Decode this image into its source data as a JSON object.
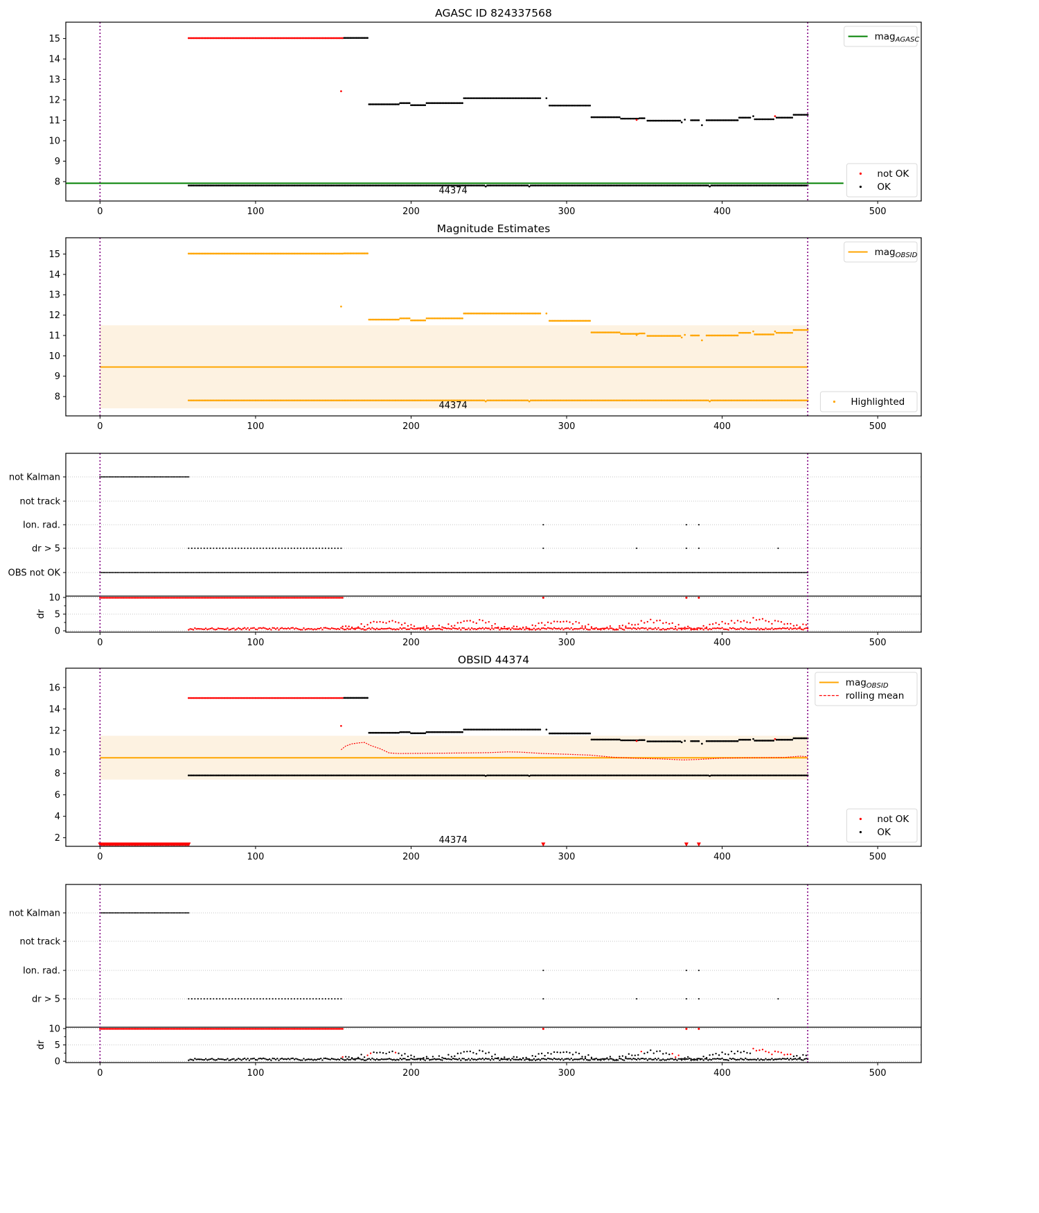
{
  "figure": {
    "vline_color": "#800080",
    "ok_color": "#000000",
    "not_ok_color": "#ff0000",
    "agasc_color": "#008000",
    "obsid_color": "#ffa500",
    "band_color": "#fdf2e1",
    "grid_color": "#b0b0b0"
  },
  "chart_data": [
    {
      "id": "agasc",
      "type": "scatter",
      "title": "AGASC ID 824337568",
      "xlim": [
        -22,
        528
      ],
      "ylim": [
        7.05,
        15.8
      ],
      "xticks": [
        0,
        100,
        200,
        300,
        400,
        500
      ],
      "yticks": [
        8,
        9,
        10,
        11,
        12,
        13,
        14,
        15
      ],
      "vlines": [
        0,
        455
      ],
      "annotation": {
        "text": "44374",
        "x": 227,
        "y": 7.6
      },
      "hline": {
        "name": "mag_AGASC",
        "y": 7.92,
        "x": [
          -22,
          478
        ]
      },
      "legends": [
        {
          "position": "top-right",
          "entries": [
            {
              "label": "mag",
              "sub": "AGASC",
              "kind": "line",
              "color": "#008000"
            }
          ]
        },
        {
          "position": "bottom-right",
          "entries": [
            {
              "label": "not OK",
              "kind": "dot",
              "color": "#ff0000"
            },
            {
              "label": "OK",
              "kind": "dot",
              "color": "#000000"
            }
          ]
        }
      ],
      "series": "mag_points"
    },
    {
      "id": "estimates",
      "type": "scatter",
      "title": "Magnitude Estimates",
      "xlim": [
        -22,
        528
      ],
      "ylim": [
        7.05,
        15.8
      ],
      "xticks": [
        0,
        100,
        200,
        300,
        400,
        500
      ],
      "yticks": [
        8,
        9,
        10,
        11,
        12,
        13,
        14,
        15
      ],
      "vlines": [
        0,
        455
      ],
      "annotation": {
        "text": "44374",
        "x": 227,
        "y": 7.6
      },
      "band": {
        "x": [
          0,
          455
        ],
        "y": [
          7.42,
          11.5
        ]
      },
      "hline": {
        "name": "mag_OBSID",
        "y": 9.45,
        "x": [
          0,
          455
        ]
      },
      "legends": [
        {
          "position": "top-right",
          "entries": [
            {
              "label": "mag",
              "sub": "OBSID",
              "kind": "line",
              "color": "#ffa500"
            }
          ]
        },
        {
          "position": "bottom-right",
          "entries": [
            {
              "label": "Highlighted",
              "kind": "dot",
              "color": "#ffa500"
            }
          ]
        }
      ],
      "series": "mag_points_highlighted"
    },
    {
      "id": "flags1",
      "type": "scatter",
      "title": "",
      "categories": [
        "OBS not OK",
        "dr > 5",
        "Ion. rad.",
        "not track",
        "not Kalman"
      ],
      "xlim": [
        -22,
        528
      ],
      "xticks": [
        0,
        100,
        200,
        300,
        400,
        500
      ],
      "vlines": [
        0,
        455
      ],
      "dr_panel": {
        "ylabel": "dr",
        "yticks": [
          0,
          5,
          10
        ],
        "ylim": [
          -0.4,
          10.4
        ],
        "color_mode": "all_red"
      }
    },
    {
      "id": "obsid",
      "type": "scatter",
      "title": "OBSID 44374",
      "xlim": [
        -22,
        528
      ],
      "ylim": [
        1.2,
        17.8
      ],
      "xticks": [
        0,
        100,
        200,
        300,
        400,
        500
      ],
      "yticks": [
        2,
        4,
        6,
        8,
        10,
        12,
        14,
        16
      ],
      "vlines": [
        0,
        455
      ],
      "annotation": {
        "text": "44374",
        "x": 227,
        "y": 1.85
      },
      "band": {
        "x": [
          0,
          455
        ],
        "y": [
          7.42,
          11.5
        ]
      },
      "hline": {
        "name": "mag_OBSID",
        "y": 9.45,
        "x": [
          0,
          455
        ]
      },
      "legends": [
        {
          "position": "top-right",
          "entries": [
            {
              "label": "mag",
              "sub": "OBSID",
              "kind": "line",
              "color": "#ffa500"
            },
            {
              "label": "rolling mean",
              "kind": "dash",
              "color": "#ff0000"
            }
          ]
        },
        {
          "position": "bottom-right",
          "entries": [
            {
              "label": "not OK",
              "kind": "dot",
              "color": "#ff0000"
            },
            {
              "label": "OK",
              "kind": "dot",
              "color": "#000000"
            }
          ]
        }
      ],
      "series": "mag_points_with_rolling_mean",
      "low_markers": {
        "y": 1.3,
        "x_range": [
          0,
          57
        ],
        "x_single": [
          285,
          377,
          385
        ]
      }
    },
    {
      "id": "flags2",
      "type": "scatter",
      "title": "",
      "categories": [
        "dr > 5",
        "Ion. rad.",
        "not track",
        "not Kalman"
      ],
      "xlim": [
        -22,
        528
      ],
      "xticks": [
        0,
        100,
        200,
        300,
        400,
        500
      ],
      "vlines": [
        0,
        455
      ],
      "dr_panel": {
        "ylabel": "dr",
        "yticks": [
          0,
          5,
          10
        ],
        "ylim": [
          -0.4,
          10.4
        ],
        "color_mode": "flagged_red"
      }
    }
  ],
  "observations": {
    "n_samples": 456,
    "flag_not_kalman_range": [
      0,
      57
    ],
    "flag_dr_gt5_range": [
      57,
      156
    ],
    "flag_dr_gt5_single": [
      285,
      345,
      377,
      385,
      436
    ],
    "flag_ion_rad": [
      285,
      377,
      385
    ],
    "flag_obs_not_ok_range": [
      0,
      455
    ],
    "mag_segments": [
      {
        "x": [
          57,
          156
        ],
        "y": 15.02,
        "ok": false
      },
      {
        "x": [
          157,
          172
        ],
        "y": 15.03,
        "ok": true
      },
      {
        "x": [
          155,
          155
        ],
        "y": 12.42,
        "ok": false
      },
      {
        "x": [
          173,
          192
        ],
        "y": 11.78,
        "ok": true
      },
      {
        "x": [
          193,
          199
        ],
        "y": 11.84,
        "ok": true
      },
      {
        "x": [
          200,
          209
        ],
        "y": 11.74,
        "ok": true
      },
      {
        "x": [
          210,
          233
        ],
        "y": 11.84,
        "ok": true
      },
      {
        "x": [
          234,
          283
        ],
        "y": 12.08,
        "ok": true
      },
      {
        "x": [
          287,
          287
        ],
        "y": 12.08,
        "ok": true
      },
      {
        "x": [
          289,
          315
        ],
        "y": 11.72,
        "ok": true
      },
      {
        "x": [
          316,
          334
        ],
        "y": 11.15,
        "ok": true
      },
      {
        "x": [
          335,
          346
        ],
        "y": 11.08,
        "ok": true
      },
      {
        "x": [
          345,
          345
        ],
        "y": 11.02,
        "ok": false
      },
      {
        "x": [
          347,
          350
        ],
        "y": 11.1,
        "ok": true
      },
      {
        "x": [
          352,
          373
        ],
        "y": 10.98,
        "ok": true
      },
      {
        "x": [
          374,
          374
        ],
        "y": 10.9,
        "ok": true
      },
      {
        "x": [
          376,
          376
        ],
        "y": 11.03,
        "ok": true
      },
      {
        "x": [
          380,
          385
        ],
        "y": 11.0,
        "ok": true
      },
      {
        "x": [
          387,
          387
        ],
        "y": 10.76,
        "ok": true
      },
      {
        "x": [
          390,
          410
        ],
        "y": 11.0,
        "ok": true
      },
      {
        "x": [
          411,
          418
        ],
        "y": 11.13,
        "ok": true
      },
      {
        "x": [
          420,
          420
        ],
        "y": 11.2,
        "ok": true
      },
      {
        "x": [
          421,
          433
        ],
        "y": 11.05,
        "ok": true
      },
      {
        "x": [
          434,
          434
        ],
        "y": 11.2,
        "ok": false
      },
      {
        "x": [
          435,
          445
        ],
        "y": 11.13,
        "ok": true
      },
      {
        "x": [
          446,
          455
        ],
        "y": 11.27,
        "ok": true
      },
      {
        "x": [
          57,
          455
        ],
        "y": 7.81,
        "ok": true
      }
    ],
    "rolling_mean": [
      [
        155,
        10.2
      ],
      [
        158,
        10.55
      ],
      [
        162,
        10.75
      ],
      [
        167,
        10.85
      ],
      [
        170,
        10.88
      ],
      [
        174,
        10.6
      ],
      [
        180,
        10.3
      ],
      [
        186,
        9.9
      ],
      [
        192,
        9.85
      ],
      [
        220,
        9.88
      ],
      [
        250,
        9.93
      ],
      [
        262,
        10.0
      ],
      [
        270,
        9.98
      ],
      [
        285,
        9.85
      ],
      [
        300,
        9.78
      ],
      [
        315,
        9.7
      ],
      [
        330,
        9.5
      ],
      [
        345,
        9.4
      ],
      [
        360,
        9.35
      ],
      [
        375,
        9.25
      ],
      [
        385,
        9.3
      ],
      [
        400,
        9.42
      ],
      [
        420,
        9.45
      ],
      [
        440,
        9.48
      ],
      [
        450,
        9.6
      ],
      [
        455,
        9.55
      ]
    ],
    "dr_large": {
      "x_range": [
        0,
        156
      ],
      "y": 9.9
    },
    "dr_large_single": [
      285,
      377,
      385
    ]
  }
}
